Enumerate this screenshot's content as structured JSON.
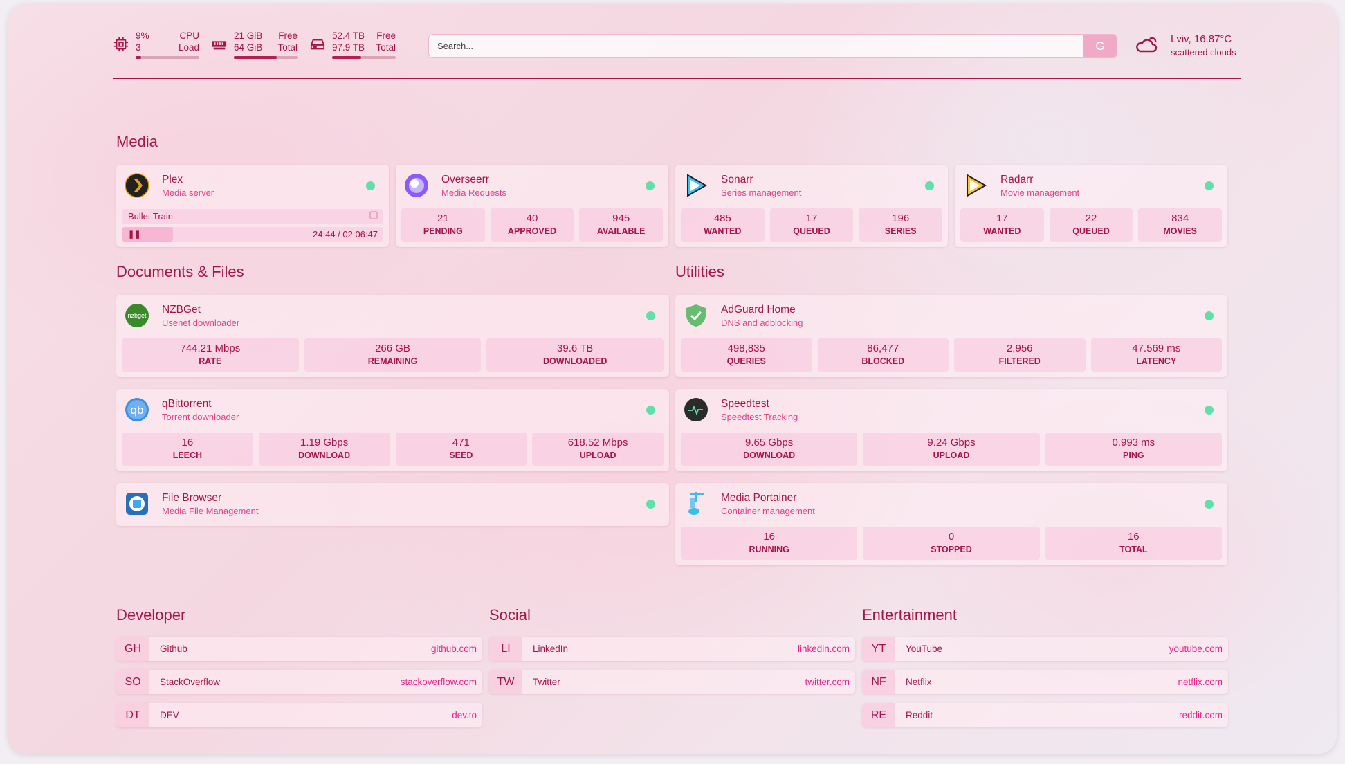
{
  "header": {
    "cpu": {
      "icon": "cpu-icon",
      "value": "9%",
      "sub": "3",
      "label1": "CPU",
      "label2": "Load",
      "percent": 9
    },
    "memory": {
      "icon": "memory-icon",
      "value": "21 GiB",
      "sub": "64 GiB",
      "label1": "Free",
      "label2": "Total",
      "percent": 67
    },
    "disk": {
      "icon": "disk-icon",
      "value": "52.4 TB",
      "sub": "97.9 TB",
      "label1": "Free",
      "label2": "Total",
      "percent": 46
    },
    "search": {
      "placeholder": "Search...",
      "button": "G"
    },
    "weather": {
      "icon": "cloud-icon",
      "location_temp": "Lviv, 16.87°C",
      "description": "scattered clouds"
    }
  },
  "colors": {
    "accent": "#a51545",
    "subtitle": "#e0418a",
    "status_ok": "#5fe0a8"
  },
  "sections": {
    "media": "Media",
    "docs": "Documents & Files",
    "utilities": "Utilities",
    "developer": "Developer",
    "social": "Social",
    "entertainment": "Entertainment"
  },
  "plex": {
    "name": "Plex",
    "desc": "Media server",
    "icon": "plex-icon",
    "now_playing": "Bullet Train",
    "progress": "24:44 / 02:06:47",
    "progress_fraction": 0.195
  },
  "services": [
    {
      "id": "overseerr",
      "name": "Overseerr",
      "desc": "Media Requests",
      "icon": "overseerr-icon",
      "stats": [
        {
          "v": "21",
          "l": "PENDING"
        },
        {
          "v": "40",
          "l": "APPROVED"
        },
        {
          "v": "945",
          "l": "AVAILABLE"
        }
      ]
    },
    {
      "id": "sonarr",
      "name": "Sonarr",
      "desc": "Series management",
      "icon": "sonarr-icon",
      "stats": [
        {
          "v": "485",
          "l": "WANTED"
        },
        {
          "v": "17",
          "l": "QUEUED"
        },
        {
          "v": "196",
          "l": "SERIES"
        }
      ]
    },
    {
      "id": "radarr",
      "name": "Radarr",
      "desc": "Movie management",
      "icon": "radarr-icon",
      "stats": [
        {
          "v": "17",
          "l": "WANTED"
        },
        {
          "v": "22",
          "l": "QUEUED"
        },
        {
          "v": "834",
          "l": "MOVIES"
        }
      ]
    },
    {
      "id": "nzbget",
      "name": "NZBGet",
      "desc": "Usenet downloader",
      "icon": "nzbget-icon",
      "stats": [
        {
          "v": "744.21 Mbps",
          "l": "RATE"
        },
        {
          "v": "266 GB",
          "l": "REMAINING"
        },
        {
          "v": "39.6 TB",
          "l": "DOWNLOADED"
        }
      ]
    },
    {
      "id": "qbittorrent",
      "name": "qBittorrent",
      "desc": "Torrent downloader",
      "icon": "qbittorrent-icon",
      "stats": [
        {
          "v": "16",
          "l": "LEECH"
        },
        {
          "v": "1.19 Gbps",
          "l": "DOWNLOAD"
        },
        {
          "v": "471",
          "l": "SEED"
        },
        {
          "v": "618.52 Mbps",
          "l": "UPLOAD"
        }
      ]
    },
    {
      "id": "filebrowser",
      "name": "File Browser",
      "desc": "Media File Management",
      "icon": "filebrowser-icon",
      "stats": []
    },
    {
      "id": "adguard",
      "name": "AdGuard Home",
      "desc": "DNS and adblocking",
      "icon": "adguard-icon",
      "stats": [
        {
          "v": "498,835",
          "l": "QUERIES"
        },
        {
          "v": "86,477",
          "l": "BLOCKED"
        },
        {
          "v": "2,956",
          "l": "FILTERED"
        },
        {
          "v": "47.569 ms",
          "l": "LATENCY"
        }
      ]
    },
    {
      "id": "speedtest",
      "name": "Speedtest",
      "desc": "Speedtest Tracking",
      "icon": "speedtest-icon",
      "stats": [
        {
          "v": "9.65 Gbps",
          "l": "DOWNLOAD"
        },
        {
          "v": "9.24 Gbps",
          "l": "UPLOAD"
        },
        {
          "v": "0.993 ms",
          "l": "PING"
        }
      ]
    },
    {
      "id": "portainer",
      "name": "Media Portainer",
      "desc": "Container management",
      "icon": "portainer-icon",
      "stats": [
        {
          "v": "16",
          "l": "RUNNING"
        },
        {
          "v": "0",
          "l": "STOPPED"
        },
        {
          "v": "16",
          "l": "TOTAL"
        }
      ]
    }
  ],
  "bookmarks": {
    "developer": [
      {
        "abbr": "GH",
        "name": "Github",
        "href": "github.com"
      },
      {
        "abbr": "SO",
        "name": "StackOverflow",
        "href": "stackoverflow.com"
      },
      {
        "abbr": "DT",
        "name": "DEV",
        "href": "dev.to"
      }
    ],
    "social": [
      {
        "abbr": "LI",
        "name": "LinkedIn",
        "href": "linkedin.com"
      },
      {
        "abbr": "TW",
        "name": "Twitter",
        "href": "twitter.com"
      }
    ],
    "entertainment": [
      {
        "abbr": "YT",
        "name": "YouTube",
        "href": "youtube.com"
      },
      {
        "abbr": "NF",
        "name": "Netflix",
        "href": "netflix.com"
      },
      {
        "abbr": "RE",
        "name": "Reddit",
        "href": "reddit.com"
      }
    ]
  }
}
